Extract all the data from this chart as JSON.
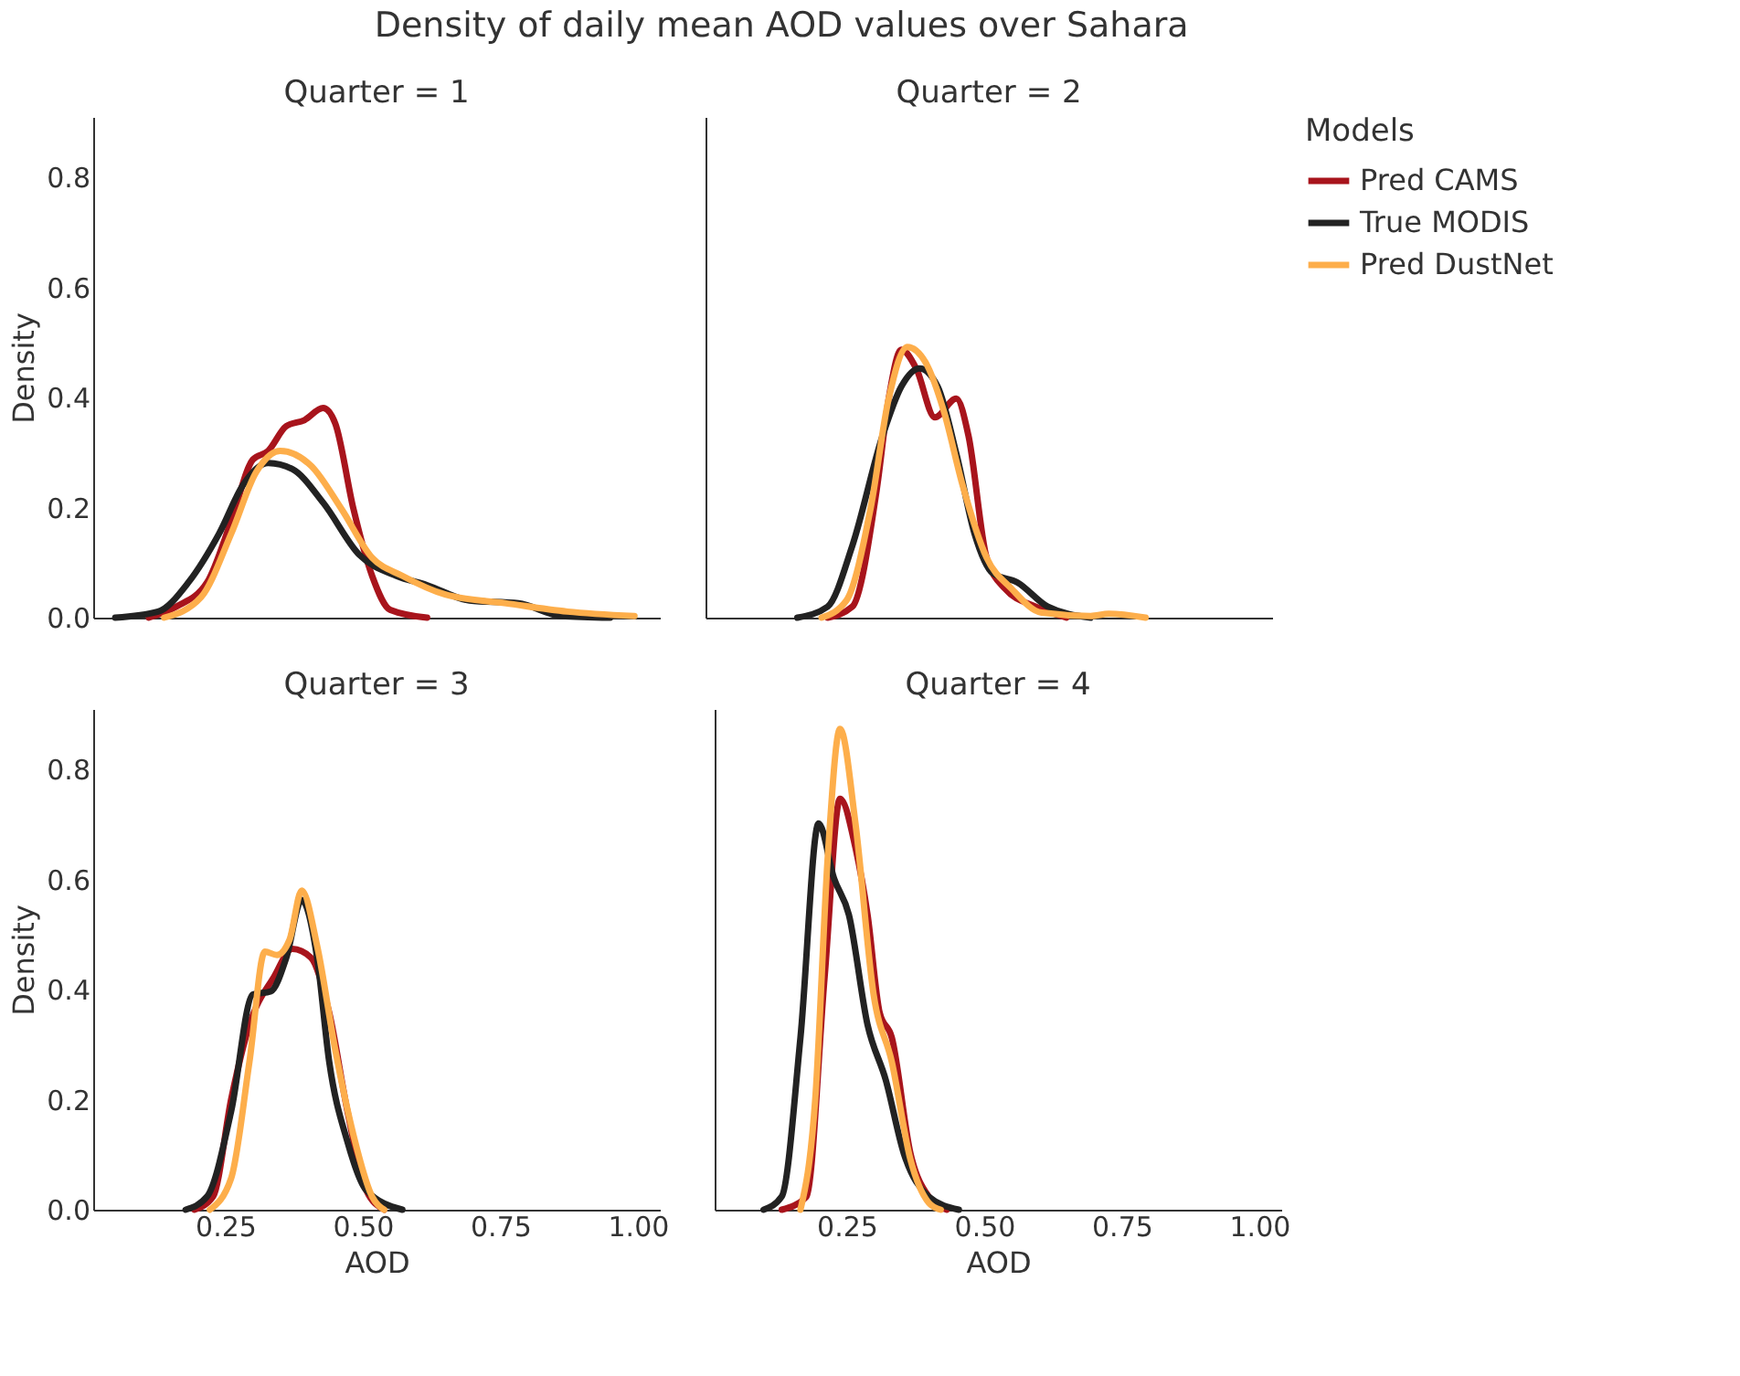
{
  "chart_data": [
    {
      "type": "line",
      "title": "Quarter = 1",
      "ylabel": "Density",
      "annotations": [
        "Density of daily mean AOD values over Sahara"
      ],
      "tick_labels": "y",
      "grid": false,
      "marker": "none",
      "line_style": "solid",
      "xlim": [
        0.01,
        1.04
      ],
      "ylim": [
        0,
        0.91
      ],
      "yticks": [
        {
          "value": 0,
          "label": "0.0"
        },
        {
          "value": 0.2,
          "label": "0.2"
        },
        {
          "value": 0.4,
          "label": "0.4"
        },
        {
          "value": 0.6,
          "label": "0.6"
        },
        {
          "value": 0.8,
          "label": "0.8"
        }
      ],
      "series": [
        {
          "color": "#a8141c",
          "x": [
            0.111,
            0.161,
            0.217,
            0.261,
            0.3,
            0.328,
            0.361,
            0.394,
            0.428,
            0.45,
            0.483,
            0.517,
            0.55,
            0.617
          ],
          "values": [
            0,
            0.02,
            0.064,
            0.176,
            0.287,
            0.303,
            0.348,
            0.359,
            0.381,
            0.353,
            0.198,
            0.076,
            0.014,
            0
          ]
        },
        {
          "color": "#222222",
          "x": [
            0.05,
            0.128,
            0.183,
            0.239,
            0.283,
            0.328,
            0.372,
            0.428,
            0.494,
            0.561,
            0.617,
            0.694,
            0.783,
            0.861,
            0.95
          ],
          "values": [
            0,
            0.011,
            0.064,
            0.153,
            0.242,
            0.281,
            0.27,
            0.209,
            0.114,
            0.076,
            0.059,
            0.031,
            0.026,
            0.003,
            0
          ]
        },
        {
          "color": "#fdae4b",
          "x": [
            0.139,
            0.206,
            0.261,
            0.306,
            0.35,
            0.406,
            0.461,
            0.517,
            0.572,
            0.65,
            0.761,
            0.872,
            0.994
          ],
          "values": [
            0,
            0.037,
            0.153,
            0.264,
            0.303,
            0.276,
            0.198,
            0.109,
            0.076,
            0.042,
            0.026,
            0.011,
            0.003
          ]
        }
      ]
    },
    {
      "type": "line",
      "title": "Quarter = 2",
      "legend": "right",
      "legend_title": "Models",
      "tick_labels": false,
      "grid": false,
      "marker": "none",
      "line_style": "solid",
      "xlim": [
        0.01,
        1.04
      ],
      "ylim": [
        0,
        0.91
      ],
      "series": [
        {
          "name": "Pred CAMS",
          "color": "#a8141c",
          "x": [
            0.232,
            0.277,
            0.321,
            0.343,
            0.366,
            0.393,
            0.427,
            0.466,
            0.488,
            0.521,
            0.554,
            0.61,
            0.666
          ],
          "values": [
            0,
            0.02,
            0.231,
            0.398,
            0.487,
            0.453,
            0.364,
            0.398,
            0.331,
            0.109,
            0.053,
            0.02,
            0
          ]
        },
        {
          "name": "True MODIS",
          "color": "#222222",
          "x": [
            0.177,
            0.232,
            0.277,
            0.332,
            0.366,
            0.399,
            0.432,
            0.466,
            0.499,
            0.532,
            0.577,
            0.632,
            0.71
          ],
          "values": [
            0,
            0.02,
            0.131,
            0.331,
            0.42,
            0.453,
            0.42,
            0.298,
            0.153,
            0.081,
            0.064,
            0.02,
            0
          ]
        },
        {
          "name": "Pred DustNet",
          "color": "#fdae4b",
          "x": [
            0.221,
            0.266,
            0.31,
            0.343,
            0.377,
            0.41,
            0.443,
            0.477,
            0.521,
            0.566,
            0.621,
            0.71,
            0.743,
            0.81
          ],
          "values": [
            0,
            0.031,
            0.198,
            0.398,
            0.492,
            0.464,
            0.376,
            0.242,
            0.109,
            0.053,
            0.009,
            0.003,
            0.007,
            0
          ]
        }
      ]
    },
    {
      "type": "line",
      "title": "Quarter = 3",
      "xlabel": "AOD",
      "ylabel": "Density",
      "grid": false,
      "marker": "none",
      "line_style": "solid",
      "xlim": [
        0.01,
        1.04
      ],
      "ylim": [
        0,
        0.91
      ],
      "xticks": [
        {
          "value": 0.25,
          "label": "0.25"
        },
        {
          "value": 0.5,
          "label": "0.50"
        },
        {
          "value": 0.75,
          "label": "0.75"
        },
        {
          "value": 1.0,
          "label": "1.00"
        }
      ],
      "yticks": [
        {
          "value": 0,
          "label": "0.0"
        },
        {
          "value": 0.2,
          "label": "0.2"
        },
        {
          "value": 0.4,
          "label": "0.4"
        },
        {
          "value": 0.6,
          "label": "0.6"
        },
        {
          "value": 0.8,
          "label": "0.8"
        }
      ],
      "series": [
        {
          "color": "#a8141c",
          "x": [
            0.194,
            0.228,
            0.261,
            0.294,
            0.339,
            0.372,
            0.406,
            0.439,
            0.472,
            0.506,
            0.539
          ],
          "values": [
            0,
            0.024,
            0.202,
            0.336,
            0.424,
            0.474,
            0.458,
            0.358,
            0.18,
            0.036,
            0
          ]
        },
        {
          "color": "#222222",
          "x": [
            0.178,
            0.217,
            0.261,
            0.3,
            0.333,
            0.361,
            0.389,
            0.417,
            0.439,
            0.472,
            0.506,
            0.572
          ],
          "values": [
            0,
            0.024,
            0.18,
            0.391,
            0.397,
            0.458,
            0.563,
            0.458,
            0.269,
            0.124,
            0.036,
            0
          ]
        },
        {
          "color": "#fdae4b",
          "x": [
            0.222,
            0.261,
            0.294,
            0.322,
            0.344,
            0.367,
            0.389,
            0.417,
            0.45,
            0.483,
            0.517,
            0.539
          ],
          "values": [
            0,
            0.058,
            0.269,
            0.469,
            0.463,
            0.491,
            0.58,
            0.48,
            0.291,
            0.136,
            0.024,
            0
          ]
        }
      ]
    },
    {
      "type": "line",
      "title": "Quarter = 4",
      "xlabel": "AOD",
      "tick_labels": "x",
      "grid": false,
      "marker": "none",
      "line_style": "solid",
      "xlim": [
        0.01,
        1.04
      ],
      "ylim": [
        0,
        0.91
      ],
      "xticks": [
        {
          "value": 0.25,
          "label": "0.25"
        },
        {
          "value": 0.5,
          "label": "0.50"
        },
        {
          "value": 0.75,
          "label": "0.75"
        },
        {
          "value": 1.0,
          "label": "1.00"
        }
      ],
      "series": [
        {
          "color": "#a8141c",
          "x": [
            0.132,
            0.177,
            0.21,
            0.238,
            0.266,
            0.288,
            0.31,
            0.332,
            0.366,
            0.399,
            0.432
          ],
          "values": [
            0,
            0.024,
            0.424,
            0.747,
            0.658,
            0.536,
            0.358,
            0.313,
            0.102,
            0.024,
            0
          ]
        },
        {
          "color": "#222222",
          "x": [
            0.099,
            0.132,
            0.166,
            0.199,
            0.227,
            0.254,
            0.288,
            0.321,
            0.354,
            0.399,
            0.454
          ],
          "values": [
            0,
            0.024,
            0.313,
            0.702,
            0.602,
            0.536,
            0.336,
            0.236,
            0.102,
            0.024,
            0
          ]
        },
        {
          "color": "#fdae4b",
          "x": [
            0.166,
            0.193,
            0.216,
            0.238,
            0.266,
            0.299,
            0.332,
            0.366,
            0.399,
            0.421
          ],
          "values": [
            0,
            0.202,
            0.647,
            0.874,
            0.702,
            0.391,
            0.269,
            0.091,
            0.013,
            0
          ]
        }
      ]
    }
  ]
}
